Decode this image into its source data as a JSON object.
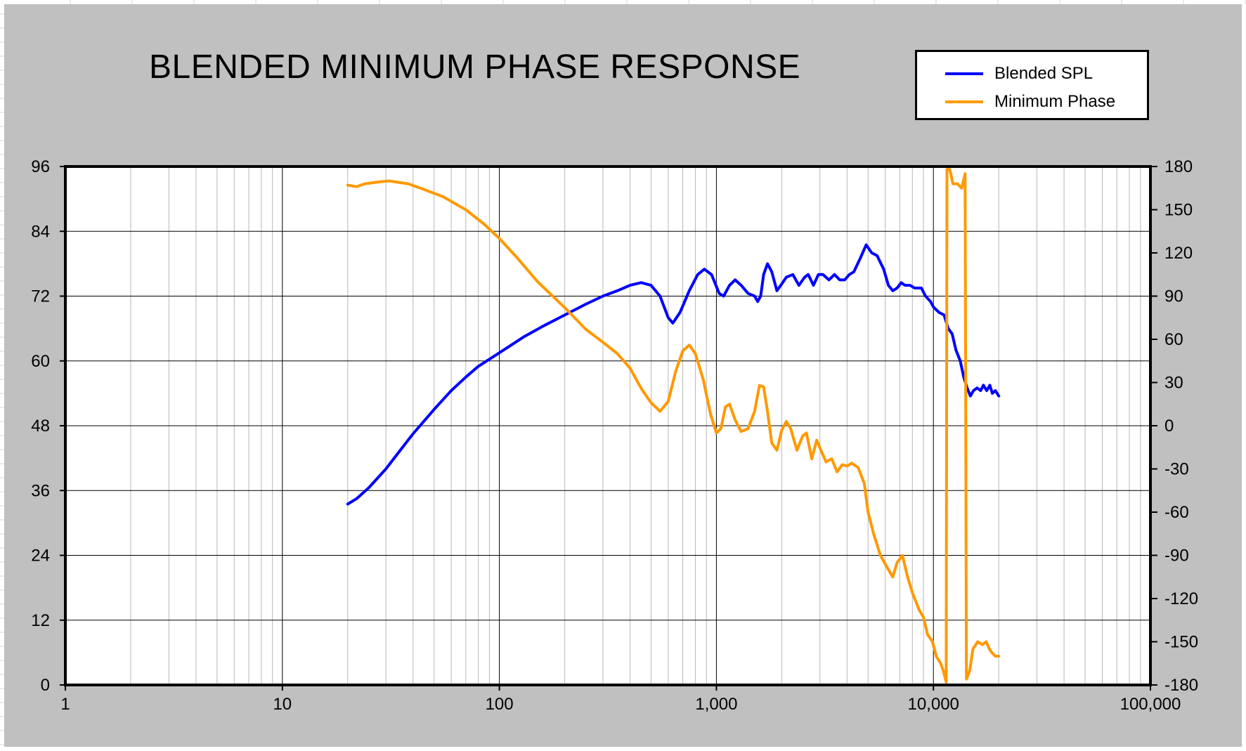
{
  "chart_data": {
    "type": "line",
    "title": "BLENDED MINIMUM PHASE RESPONSE",
    "x_scale": "log",
    "xlim": [
      1,
      100000
    ],
    "x_ticks": [
      1,
      10,
      100,
      1000,
      10000,
      100000
    ],
    "x_tick_labels": [
      "1",
      "10",
      "100",
      "1,000",
      "10,000",
      "100,000"
    ],
    "y_left": {
      "lim": [
        0,
        96
      ],
      "ticks": [
        0,
        12,
        24,
        36,
        48,
        60,
        72,
        84,
        96
      ],
      "tick_labels": [
        "0",
        "12",
        "24",
        "36",
        "48",
        "60",
        "72",
        "84",
        "96"
      ]
    },
    "y_right": {
      "lim": [
        -180,
        180
      ],
      "ticks": [
        -180,
        -150,
        -120,
        -90,
        -60,
        -30,
        0,
        30,
        60,
        90,
        120,
        150,
        180
      ],
      "tick_labels": [
        "-180",
        "-150",
        "-120",
        "-90",
        "-60",
        "-30",
        "0",
        "30",
        "60",
        "90",
        "120",
        "150",
        "180"
      ]
    },
    "grid": true,
    "legend_position": "top-right",
    "series": [
      {
        "name": "Blended SPL",
        "axis": "left",
        "color": "#0000ff",
        "points": [
          [
            20,
            33.5
          ],
          [
            22,
            34.5
          ],
          [
            25,
            36.5
          ],
          [
            30,
            40
          ],
          [
            35,
            43.5
          ],
          [
            40,
            46.5
          ],
          [
            50,
            51
          ],
          [
            60,
            54.5
          ],
          [
            70,
            57
          ],
          [
            80,
            59
          ],
          [
            100,
            61.5
          ],
          [
            130,
            64.5
          ],
          [
            160,
            66.5
          ],
          [
            200,
            68.5
          ],
          [
            250,
            70.5
          ],
          [
            300,
            72
          ],
          [
            350,
            73
          ],
          [
            400,
            74
          ],
          [
            450,
            74.5
          ],
          [
            500,
            74
          ],
          [
            550,
            72
          ],
          [
            600,
            68
          ],
          [
            630,
            67
          ],
          [
            680,
            69
          ],
          [
            750,
            73
          ],
          [
            820,
            76
          ],
          [
            880,
            77
          ],
          [
            950,
            76
          ],
          [
            1030,
            72.5
          ],
          [
            1080,
            72
          ],
          [
            1150,
            74
          ],
          [
            1220,
            75
          ],
          [
            1300,
            74
          ],
          [
            1400,
            72.5
          ],
          [
            1500,
            72
          ],
          [
            1550,
            71
          ],
          [
            1600,
            72
          ],
          [
            1650,
            76
          ],
          [
            1720,
            78
          ],
          [
            1800,
            76.5
          ],
          [
            1900,
            73
          ],
          [
            1980,
            74
          ],
          [
            2100,
            75.5
          ],
          [
            2250,
            76
          ],
          [
            2400,
            74
          ],
          [
            2550,
            75.5
          ],
          [
            2650,
            76
          ],
          [
            2800,
            74
          ],
          [
            2950,
            76
          ],
          [
            3100,
            76
          ],
          [
            3300,
            75
          ],
          [
            3500,
            76
          ],
          [
            3700,
            75
          ],
          [
            3900,
            75
          ],
          [
            4100,
            76
          ],
          [
            4300,
            76.5
          ],
          [
            4600,
            79
          ],
          [
            4900,
            81.5
          ],
          [
            5200,
            80
          ],
          [
            5500,
            79.5
          ],
          [
            5900,
            77
          ],
          [
            6200,
            74
          ],
          [
            6500,
            73
          ],
          [
            6800,
            73.5
          ],
          [
            7100,
            74.5
          ],
          [
            7400,
            74
          ],
          [
            7800,
            74
          ],
          [
            8200,
            73.5
          ],
          [
            8800,
            73.5
          ],
          [
            9200,
            72
          ],
          [
            9700,
            71
          ],
          [
            10000,
            70
          ],
          [
            10600,
            69
          ],
          [
            11200,
            68.5
          ],
          [
            11700,
            66
          ],
          [
            12200,
            65
          ],
          [
            12700,
            62
          ],
          [
            13300,
            60
          ],
          [
            13800,
            57
          ],
          [
            14300,
            55
          ],
          [
            14800,
            53.5
          ],
          [
            15300,
            54.5
          ],
          [
            15900,
            55
          ],
          [
            16500,
            54.5
          ],
          [
            17000,
            55.5
          ],
          [
            17600,
            54.5
          ],
          [
            18200,
            55.5
          ],
          [
            18700,
            54
          ],
          [
            19300,
            54.5
          ],
          [
            20000,
            53.5
          ]
        ]
      },
      {
        "name": "Minimum Phase",
        "axis": "right",
        "color": "#ff9900",
        "points": [
          [
            20,
            167
          ],
          [
            22,
            166
          ],
          [
            24,
            168
          ],
          [
            27,
            169
          ],
          [
            31,
            170
          ],
          [
            38,
            168
          ],
          [
            45,
            164
          ],
          [
            55,
            159
          ],
          [
            70,
            150
          ],
          [
            85,
            140
          ],
          [
            100,
            130
          ],
          [
            120,
            117
          ],
          [
            150,
            100
          ],
          [
            200,
            82
          ],
          [
            250,
            67
          ],
          [
            300,
            58
          ],
          [
            350,
            50
          ],
          [
            400,
            40
          ],
          [
            450,
            26
          ],
          [
            500,
            16
          ],
          [
            550,
            10
          ],
          [
            600,
            17
          ],
          [
            650,
            38
          ],
          [
            700,
            52
          ],
          [
            750,
            56
          ],
          [
            800,
            50
          ],
          [
            870,
            32
          ],
          [
            940,
            8
          ],
          [
            1000,
            -5
          ],
          [
            1050,
            -2
          ],
          [
            1100,
            13
          ],
          [
            1150,
            15
          ],
          [
            1220,
            4
          ],
          [
            1300,
            -4
          ],
          [
            1400,
            -2
          ],
          [
            1500,
            10
          ],
          [
            1580,
            28
          ],
          [
            1650,
            27
          ],
          [
            1720,
            10
          ],
          [
            1800,
            -12
          ],
          [
            1900,
            -17
          ],
          [
            2000,
            -3
          ],
          [
            2100,
            3
          ],
          [
            2200,
            -2
          ],
          [
            2350,
            -17
          ],
          [
            2500,
            -7
          ],
          [
            2600,
            -5
          ],
          [
            2750,
            -23
          ],
          [
            2900,
            -10
          ],
          [
            3050,
            -18
          ],
          [
            3200,
            -25
          ],
          [
            3400,
            -23
          ],
          [
            3600,
            -32
          ],
          [
            3800,
            -27
          ],
          [
            4000,
            -28
          ],
          [
            4200,
            -26
          ],
          [
            4500,
            -29
          ],
          [
            4800,
            -40
          ],
          [
            5000,
            -60
          ],
          [
            5300,
            -75
          ],
          [
            5700,
            -90
          ],
          [
            6100,
            -98
          ],
          [
            6500,
            -105
          ],
          [
            6800,
            -95
          ],
          [
            7200,
            -90
          ],
          [
            7600,
            -105
          ],
          [
            8000,
            -116
          ],
          [
            8600,
            -128
          ],
          [
            9000,
            -133
          ],
          [
            9400,
            -145
          ],
          [
            9900,
            -150
          ],
          [
            10300,
            -160
          ],
          [
            10800,
            -165
          ],
          [
            11100,
            -170
          ],
          [
            11450,
            -178
          ],
          [
            11550,
            178
          ],
          [
            11900,
            178
          ],
          [
            12300,
            168
          ],
          [
            12900,
            168
          ],
          [
            13500,
            165
          ],
          [
            14000,
            175
          ],
          [
            14200,
            -176
          ],
          [
            14700,
            -170
          ],
          [
            15200,
            -155
          ],
          [
            16000,
            -150
          ],
          [
            16800,
            -152
          ],
          [
            17500,
            -150
          ],
          [
            18100,
            -155
          ],
          [
            18700,
            -158
          ],
          [
            19300,
            -160
          ],
          [
            20000,
            -160
          ]
        ]
      }
    ]
  }
}
